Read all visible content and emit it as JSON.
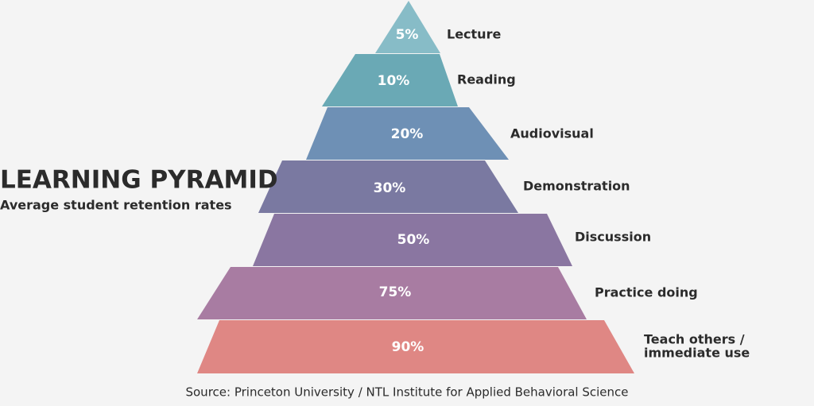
{
  "title": "LEARNING PYRAMID",
  "subtitle": "Average student retention rates",
  "levels": [
    {
      "value": "5%",
      "label": [
        "Lecture"
      ]
    },
    {
      "value": "10%",
      "label": [
        "Reading"
      ]
    },
    {
      "value": "20%",
      "label": [
        "Audiovisual"
      ]
    },
    {
      "value": "30%",
      "label": [
        "Demonstration"
      ]
    },
    {
      "value": "50%",
      "label": [
        "Discussion"
      ]
    },
    {
      "value": "75%",
      "label": [
        "Practice doing"
      ]
    },
    {
      "value": "90%",
      "label": [
        "Teach others /",
        "immediate use"
      ]
    }
  ],
  "source": "Source: Princeton University / NTL Institute for Applied Behavioral Science"
}
